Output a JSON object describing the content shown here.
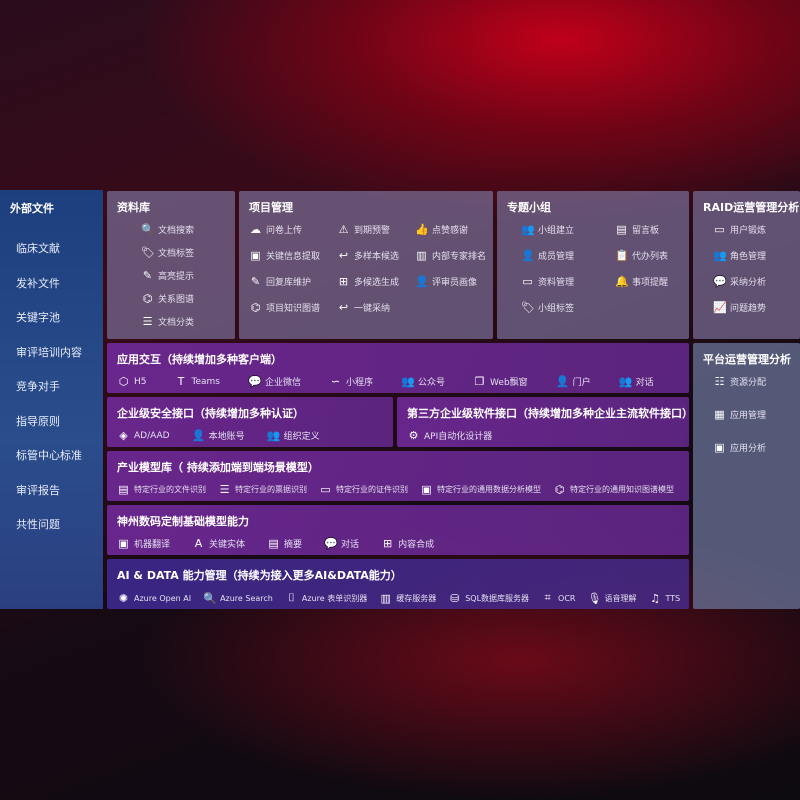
{
  "sidebar": {
    "title": "外部文件",
    "items": [
      "临床文献",
      "发补文件",
      "关键字池",
      "审评培训内容",
      "竞争对手",
      "指导原则",
      "标管中心标准",
      "审评报告",
      "共性问题"
    ]
  },
  "library": {
    "title": "资料库",
    "items": [
      {
        "icon": "document-search-icon",
        "g": "🔍",
        "label": "文档搜索"
      },
      {
        "icon": "tag-icon",
        "g": "🏷",
        "label": "文档标签"
      },
      {
        "icon": "pen-icon",
        "g": "✎",
        "label": "高亮提示"
      },
      {
        "icon": "graph-icon",
        "g": "⌬",
        "label": "关系图谱"
      },
      {
        "icon": "document-stack-icon",
        "g": "☰",
        "label": "文档分类"
      }
    ]
  },
  "project": {
    "title": "项目管理",
    "items": [
      {
        "icon": "cloud-upload-icon",
        "g": "☁",
        "label": "问卷上传"
      },
      {
        "icon": "alarm-icon",
        "g": "⚠",
        "label": "到期预警"
      },
      {
        "icon": "thumbs-up-icon",
        "g": "👍",
        "label": "点赞感谢"
      },
      {
        "icon": "window-icon",
        "g": "▣",
        "label": "关键信息提取"
      },
      {
        "icon": "reply-icon",
        "g": "↩",
        "label": "多样本候选"
      },
      {
        "icon": "ranking-icon",
        "g": "▥",
        "label": "内部专家排名"
      },
      {
        "icon": "pen-icon",
        "g": "✎",
        "label": "回复库维护"
      },
      {
        "icon": "puzzle-icon",
        "g": "⊞",
        "label": "多候选生成"
      },
      {
        "icon": "user-icon",
        "g": "👤",
        "label": "评审员画像"
      },
      {
        "icon": "graph-icon",
        "g": "⌬",
        "label": "项目知识图谱"
      },
      {
        "icon": "reply-icon",
        "g": "↩",
        "label": "一键采纳"
      }
    ]
  },
  "topic": {
    "title": "专题小组",
    "items": [
      {
        "icon": "group-icon",
        "g": "👥",
        "label": "小组建立"
      },
      {
        "icon": "bbs-icon",
        "g": "▤",
        "label": "留言板"
      },
      {
        "icon": "user-add-icon",
        "g": "👤",
        "label": "成员管理"
      },
      {
        "icon": "clipboard-icon",
        "g": "📋",
        "label": "代办列表"
      },
      {
        "icon": "folder-icon",
        "g": "▭",
        "label": "资料管理"
      },
      {
        "icon": "bell-icon",
        "g": "🔔",
        "label": "事项提醒"
      },
      {
        "icon": "tag-icon",
        "g": "🏷",
        "label": "小组标签"
      }
    ]
  },
  "raid": {
    "title": "RAID运营管理分析",
    "items": [
      {
        "icon": "id-card-icon",
        "g": "▭",
        "label": "用户锻炼"
      },
      {
        "icon": "group-icon",
        "g": "👥",
        "label": "角色管理"
      },
      {
        "icon": "qa-icon",
        "g": "💬",
        "label": "采纳分析"
      },
      {
        "icon": "trend-chart-icon",
        "g": "📈",
        "label": "问题趋势"
      }
    ]
  },
  "platform": {
    "title": "平台运营管理分析",
    "items": [
      {
        "icon": "list-icon",
        "g": "☷",
        "label": "资源分配"
      },
      {
        "icon": "apps-icon",
        "g": "▦",
        "label": "应用管理"
      },
      {
        "icon": "analysis-icon",
        "g": "▣",
        "label": "应用分析"
      }
    ]
  },
  "interaction": {
    "title": "应用交互（持续增加多种客户端）",
    "items": [
      {
        "icon": "html5-icon",
        "g": "⬡",
        "label": "H5"
      },
      {
        "icon": "teams-icon",
        "g": "T",
        "label": "Teams"
      },
      {
        "icon": "wechat-icon",
        "g": "💬",
        "label": "企业微信"
      },
      {
        "icon": "mini-program-icon",
        "g": "∽",
        "label": "小程序"
      },
      {
        "icon": "group-icon",
        "g": "👥",
        "label": "公众号"
      },
      {
        "icon": "window-icon",
        "g": "❐",
        "label": "Web飘窗"
      },
      {
        "icon": "portal-user-icon",
        "g": "👤",
        "label": "门户"
      },
      {
        "icon": "dialog-users-icon",
        "g": "👥",
        "label": "对话"
      }
    ]
  },
  "security": {
    "title": "企业级安全接口（持续增加多种认证）",
    "items": [
      {
        "icon": "ad-icon",
        "g": "◈",
        "label": "AD/AAD"
      },
      {
        "icon": "user-lock-icon",
        "g": "👤",
        "label": "本地账号"
      },
      {
        "icon": "organization-icon",
        "g": "👥",
        "label": "组织定义"
      }
    ]
  },
  "thirdparty": {
    "title": "第三方企业级软件接口（持续增加多种企业主流软件接口）",
    "items": [
      {
        "icon": "gear-icon",
        "g": "⚙",
        "label": "API自动化设计器"
      }
    ]
  },
  "industry": {
    "title": "产业模型库（ 持续添加端到端场景模型）",
    "items": [
      {
        "icon": "file-icon",
        "g": "▤",
        "label": "特定行业的文件识别"
      },
      {
        "icon": "receipt-icon",
        "g": "☰",
        "label": "特定行业的票据识别"
      },
      {
        "icon": "id-card-icon",
        "g": "▭",
        "label": "特定行业的证件识别"
      },
      {
        "icon": "data-chart-icon",
        "g": "▣",
        "label": "特定行业的通用数据分析模型"
      },
      {
        "icon": "graph-icon",
        "g": "⌬",
        "label": "特定行业的通用知识图谱模型"
      }
    ]
  },
  "base": {
    "title": "神州数码定制基础模型能力",
    "items": [
      {
        "icon": "translate-icon",
        "g": "▣",
        "label": "机器翻译"
      },
      {
        "icon": "entity-icon",
        "g": "A",
        "label": "关键实体"
      },
      {
        "icon": "summary-icon",
        "g": "▤",
        "label": "摘要"
      },
      {
        "icon": "chat-icon",
        "g": "💬",
        "label": "对话"
      },
      {
        "icon": "puzzle-icon",
        "g": "⊞",
        "label": "内容合成"
      }
    ]
  },
  "aidata": {
    "title": "AI & DATA 能力管理（持续为接入更多AI&DATA能力）",
    "items": [
      {
        "icon": "openai-icon",
        "g": "✺",
        "label": "Azure Open AI"
      },
      {
        "icon": "search-doc-icon",
        "g": "🔍",
        "label": "Azure Search"
      },
      {
        "icon": "form-recognizer-icon",
        "g": "⌷",
        "label": "Azure 表单识别器"
      },
      {
        "icon": "cache-server-icon",
        "g": "▥",
        "label": "缓存服务器"
      },
      {
        "icon": "database-icon",
        "g": "⛁",
        "label": "SQL数据库服务器"
      },
      {
        "icon": "ocr-icon",
        "g": "⌗",
        "label": "OCR"
      },
      {
        "icon": "voice-icon",
        "g": "🎙",
        "label": "语音理解"
      },
      {
        "icon": "tts-icon",
        "g": "♫",
        "label": "TTS"
      }
    ]
  }
}
